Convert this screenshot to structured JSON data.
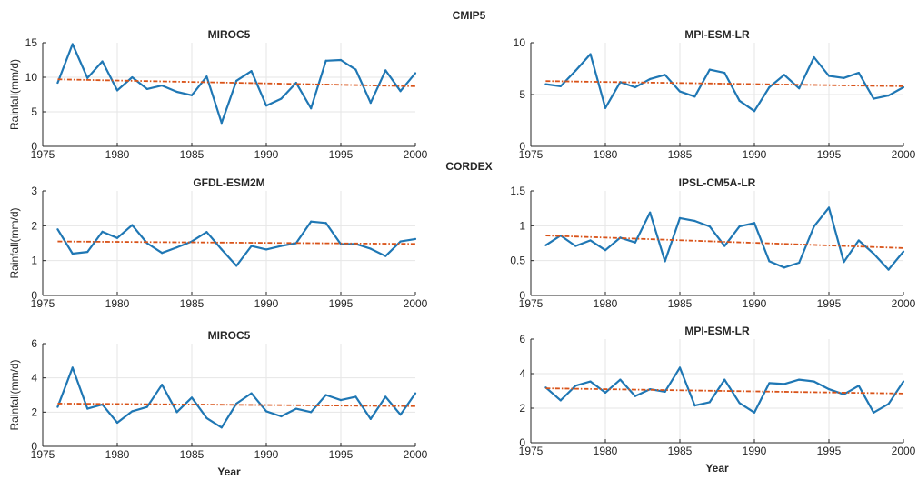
{
  "figure": {
    "section_titles": [
      "CMIP5",
      "CORDEX"
    ],
    "colors": {
      "series": "#1f77b4",
      "trend": "#d95319",
      "grid": "#e6e6e6",
      "axis": "#262626"
    }
  },
  "chart_data": [
    {
      "type": "line",
      "title": "MIROC5",
      "ylabel": "Rainfall(mm/d)",
      "xlabel": "",
      "xlim": [
        1975,
        2000
      ],
      "ylim": [
        0,
        15
      ],
      "xticks": [
        1975,
        1980,
        1985,
        1990,
        1995,
        2000
      ],
      "yticks": [
        0,
        5,
        10,
        15
      ],
      "grid": true,
      "x": [
        1976,
        1977,
        1978,
        1979,
        1980,
        1981,
        1982,
        1983,
        1984,
        1985,
        1986,
        1987,
        1988,
        1989,
        1990,
        1991,
        1992,
        1993,
        1994,
        1995,
        1996,
        1997,
        1998,
        1999,
        2000
      ],
      "values": [
        9.2,
        14.8,
        9.9,
        12.3,
        8.1,
        10.0,
        8.3,
        8.8,
        7.9,
        7.4,
        10.1,
        3.4,
        9.5,
        10.9,
        5.9,
        6.9,
        9.2,
        5.5,
        12.4,
        12.5,
        11.1,
        6.3,
        11.0,
        8.0,
        10.6
      ],
      "trend": [
        9.7,
        8.7
      ]
    },
    {
      "type": "line",
      "title": "MPI-ESM-LR",
      "ylabel": "",
      "xlabel": "",
      "xlim": [
        1975,
        2000
      ],
      "ylim": [
        0,
        10
      ],
      "xticks": [
        1975,
        1980,
        1985,
        1990,
        1995,
        2000
      ],
      "yticks": [
        0,
        5,
        10
      ],
      "grid": true,
      "x": [
        1976,
        1977,
        1978,
        1979,
        1980,
        1981,
        1982,
        1983,
        1984,
        1985,
        1986,
        1987,
        1988,
        1989,
        1990,
        1991,
        1992,
        1993,
        1994,
        1995,
        1996,
        1997,
        1998,
        1999,
        2000
      ],
      "values": [
        6.0,
        5.8,
        7.3,
        8.9,
        3.7,
        6.2,
        5.7,
        6.5,
        6.9,
        5.3,
        4.8,
        7.4,
        7.1,
        4.4,
        3.4,
        5.7,
        6.9,
        5.6,
        8.6,
        6.8,
        6.6,
        7.1,
        4.6,
        4.9,
        5.7
      ],
      "trend": [
        6.3,
        5.8
      ]
    },
    {
      "type": "line",
      "title": "GFDL-ESM2M",
      "ylabel": "Rainfall(mm/d)",
      "xlabel": "",
      "xlim": [
        1975,
        2000
      ],
      "ylim": [
        0,
        3
      ],
      "xticks": [
        1975,
        1980,
        1985,
        1990,
        1995,
        2000
      ],
      "yticks": [
        0,
        1,
        2,
        3
      ],
      "grid": true,
      "x": [
        1976,
        1977,
        1978,
        1979,
        1980,
        1981,
        1982,
        1983,
        1984,
        1985,
        1986,
        1987,
        1988,
        1989,
        1990,
        1991,
        1992,
        1993,
        1994,
        1995,
        1996,
        1997,
        1998,
        1999,
        2000
      ],
      "values": [
        1.9,
        1.2,
        1.25,
        1.83,
        1.65,
        2.02,
        1.5,
        1.22,
        1.38,
        1.55,
        1.82,
        1.32,
        0.85,
        1.42,
        1.32,
        1.42,
        1.5,
        2.12,
        2.08,
        1.47,
        1.48,
        1.34,
        1.13,
        1.55,
        1.62
      ],
      "trend": [
        1.55,
        1.48
      ]
    },
    {
      "type": "line",
      "title": "IPSL-CM5A-LR",
      "ylabel": "",
      "xlabel": "",
      "xlim": [
        1975,
        2000
      ],
      "ylim": [
        0,
        1.5
      ],
      "xticks": [
        1975,
        1980,
        1985,
        1990,
        1995,
        2000
      ],
      "yticks": [
        0,
        0.5,
        1,
        1.5
      ],
      "ytick_labels": [
        "0",
        "0.5",
        "1",
        "1.5"
      ],
      "grid": true,
      "x": [
        1976,
        1977,
        1978,
        1979,
        1980,
        1981,
        1982,
        1983,
        1984,
        1985,
        1986,
        1987,
        1988,
        1989,
        1990,
        1991,
        1992,
        1993,
        1994,
        1995,
        1996,
        1997,
        1998,
        1999,
        2000
      ],
      "values": [
        0.72,
        0.86,
        0.71,
        0.79,
        0.65,
        0.83,
        0.76,
        1.19,
        0.49,
        1.11,
        1.07,
        0.99,
        0.71,
        0.99,
        1.04,
        0.49,
        0.4,
        0.47,
        0.99,
        1.26,
        0.48,
        0.79,
        0.6,
        0.37,
        0.63
      ],
      "trend": [
        0.86,
        0.68
      ]
    },
    {
      "type": "line",
      "title": "MIROC5",
      "ylabel": "Rainfall(mm/d)",
      "xlabel": "Year",
      "xlim": [
        1975,
        2000
      ],
      "ylim": [
        0,
        6
      ],
      "xticks": [
        1975,
        1980,
        1985,
        1990,
        1995,
        2000
      ],
      "yticks": [
        0,
        2,
        4,
        6
      ],
      "grid": true,
      "x": [
        1976,
        1977,
        1978,
        1979,
        1980,
        1981,
        1982,
        1983,
        1984,
        1985,
        1986,
        1987,
        1988,
        1989,
        1990,
        1991,
        1992,
        1993,
        1994,
        1995,
        1996,
        1997,
        1998,
        1999,
        2000
      ],
      "values": [
        2.3,
        4.6,
        2.2,
        2.45,
        1.38,
        2.05,
        2.3,
        3.6,
        2.0,
        2.85,
        1.65,
        1.1,
        2.5,
        3.1,
        2.05,
        1.75,
        2.2,
        2.0,
        3.0,
        2.7,
        2.9,
        1.6,
        2.9,
        1.85,
        3.1
      ],
      "trend": [
        2.5,
        2.35
      ]
    },
    {
      "type": "line",
      "title": "MPI-ESM-LR",
      "ylabel": "",
      "xlabel": "Year",
      "xlim": [
        1975,
        2000
      ],
      "ylim": [
        0,
        6
      ],
      "xticks": [
        1975,
        1980,
        1985,
        1990,
        1995,
        2000
      ],
      "yticks": [
        0,
        2,
        4,
        6
      ],
      "grid": true,
      "x": [
        1976,
        1977,
        1978,
        1979,
        1980,
        1981,
        1982,
        1983,
        1984,
        1985,
        1986,
        1987,
        1988,
        1989,
        1990,
        1991,
        1992,
        1993,
        1994,
        1995,
        1996,
        1997,
        1998,
        1999,
        2000
      ],
      "values": [
        3.2,
        2.45,
        3.3,
        3.55,
        2.9,
        3.65,
        2.7,
        3.1,
        2.95,
        4.35,
        2.15,
        2.35,
        3.65,
        2.3,
        1.75,
        3.45,
        3.4,
        3.65,
        3.55,
        3.1,
        2.8,
        3.3,
        1.75,
        2.25,
        3.55
      ],
      "trend": [
        3.15,
        2.85
      ]
    }
  ]
}
